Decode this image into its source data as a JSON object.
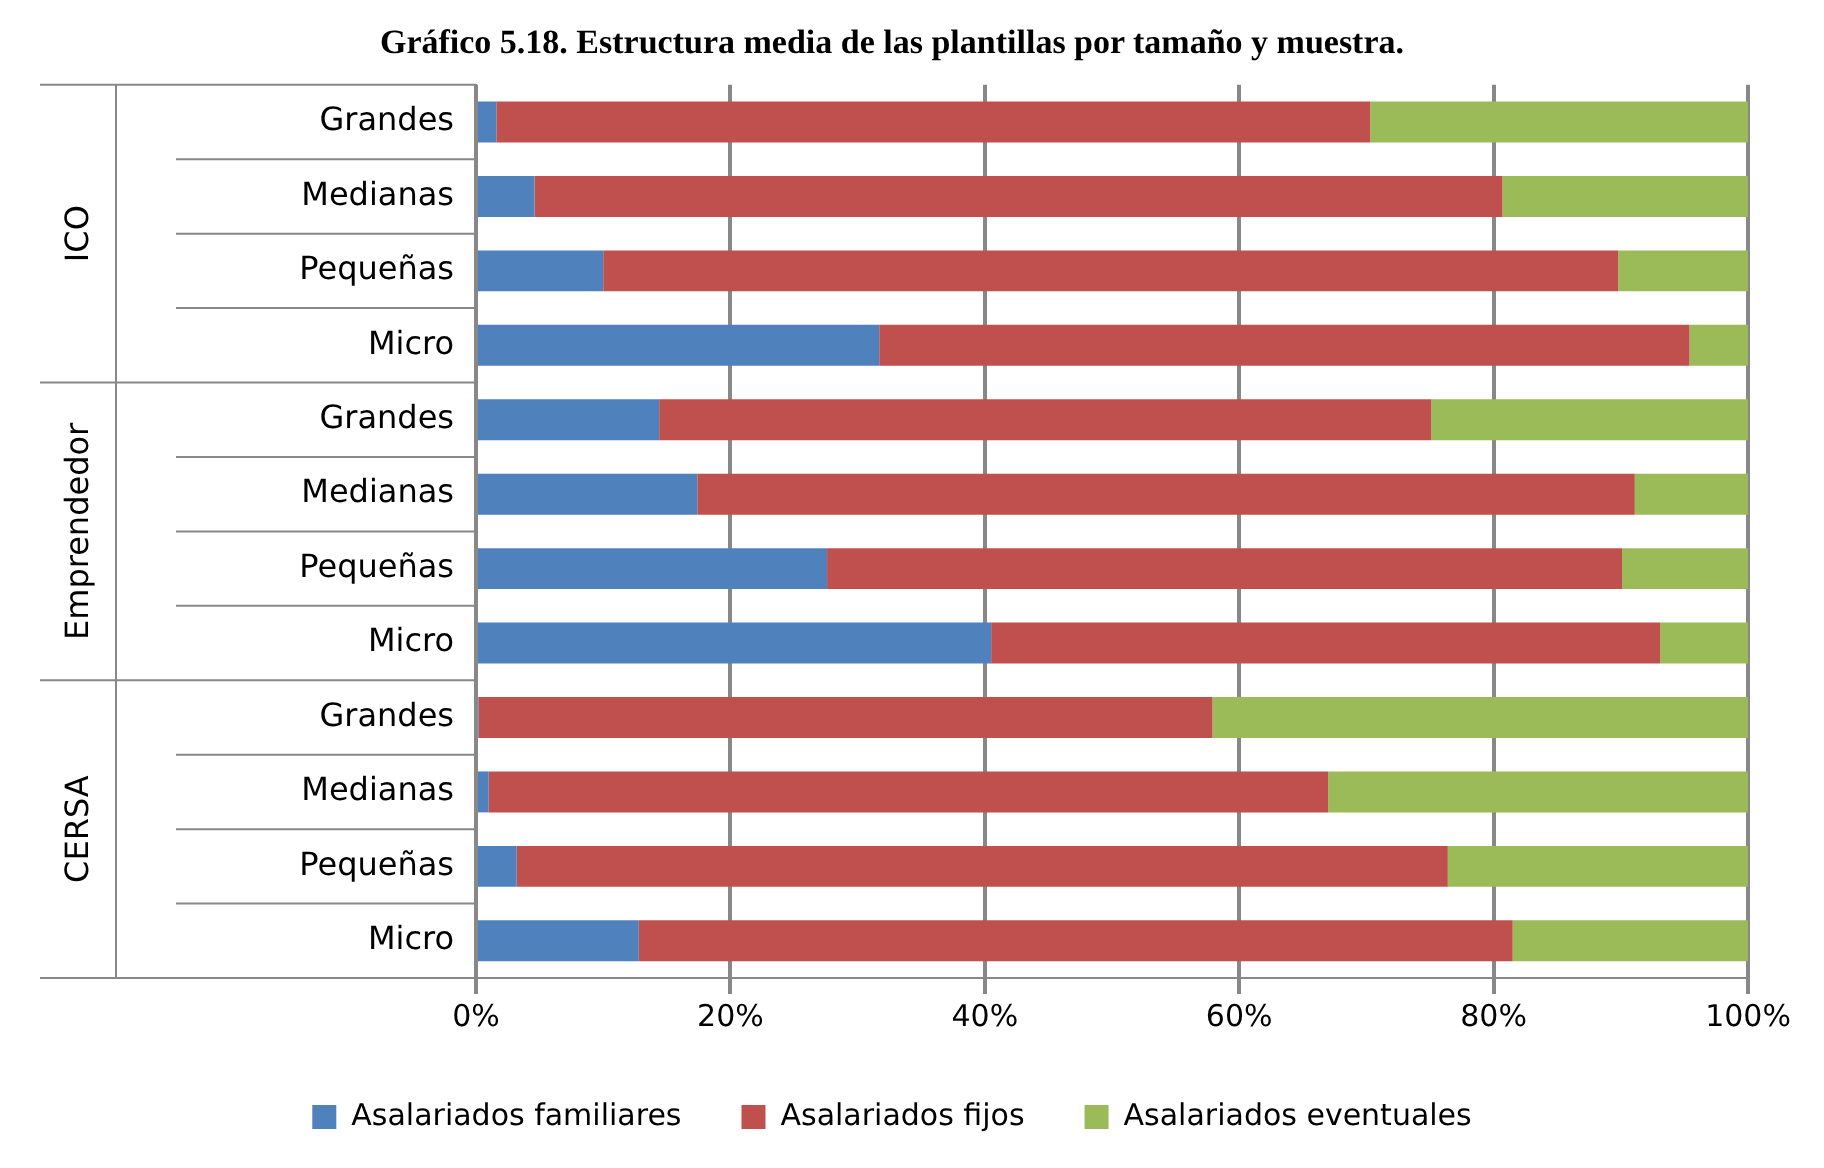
{
  "chart_data": {
    "type": "bar",
    "orientation": "horizontal",
    "stacked": true,
    "title": "Gráfico 5.18. Estructura media de las plantillas por tamaño y muestra.",
    "categories": [
      "Grandes",
      "Medianas",
      "Pequeñas",
      "Micro",
      "Grandes",
      "Medianas",
      "Pequeñas",
      "Micro",
      "Grandes",
      "Medianas",
      "Pequeñas",
      "Micro"
    ],
    "series": [
      {
        "name": "Asalariados familiares",
        "color": "#4f81bd",
        "values": [
          1.6,
          4.6,
          10.0,
          31.7,
          14.4,
          17.4,
          27.6,
          40.5,
          0.2,
          1.0,
          3.2,
          12.8
        ]
      },
      {
        "name": "Asalariados fijos",
        "color": "#c0504d",
        "values": [
          68.7,
          76.1,
          79.8,
          63.7,
          60.7,
          73.7,
          62.5,
          52.6,
          57.7,
          66.0,
          73.2,
          68.7
        ]
      },
      {
        "name": "Asalariados eventuales",
        "color": "#9bbb59",
        "values": [
          29.7,
          19.3,
          10.2,
          4.6,
          24.9,
          8.9,
          9.9,
          6.9,
          42.1,
          33.0,
          23.6,
          18.5
        ]
      }
    ],
    "annotations": [
      "ICO",
      "Emprendedor",
      "CERSA"
    ],
    "xlim": [
      0,
      100
    ],
    "xticks": [
      {
        "value": 0,
        "label": "0%"
      },
      {
        "value": 20,
        "label": "20%"
      },
      {
        "value": 40,
        "label": "40%"
      },
      {
        "value": 60,
        "label": "60%"
      },
      {
        "value": 80,
        "label": "80%"
      },
      {
        "value": 100,
        "label": "100%"
      }
    ],
    "grid": "x",
    "legend": "bottom"
  }
}
